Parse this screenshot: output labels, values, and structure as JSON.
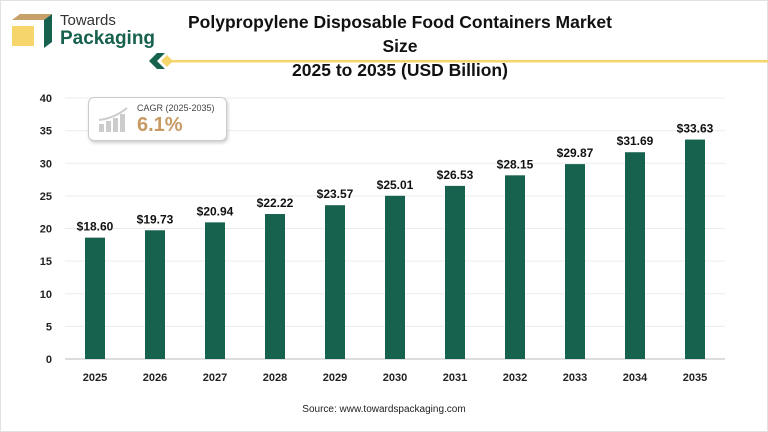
{
  "brand": {
    "line1": "Towards",
    "line2": "Packaging"
  },
  "colors": {
    "bar": "#17614f",
    "accent": "#f6d56a",
    "cagr": "#c89a64"
  },
  "cagr": {
    "label": "CAGR (2025-2035)",
    "value": "6.1%"
  },
  "source": "Source: www.towardspackaging.com",
  "chart_data": {
    "type": "bar",
    "title": "Polypropylene Disposable Food Containers Market Size 2025 to 2035 (USD Billion)",
    "title_lines": [
      "Polypropylene Disposable Food Containers Market Size",
      "2025 to 2035 (USD Billion)"
    ],
    "categories": [
      "2025",
      "2026",
      "2027",
      "2028",
      "2029",
      "2030",
      "2031",
      "2032",
      "2033",
      "2034",
      "2035"
    ],
    "values": [
      18.6,
      19.73,
      20.94,
      22.22,
      23.57,
      25.01,
      26.53,
      28.15,
      29.87,
      31.69,
      33.63
    ],
    "data_labels": [
      "$18.60",
      "$19.73",
      "$20.94",
      "$22.22",
      "$23.57",
      "$25.01",
      "$26.53",
      "$28.15",
      "$29.87",
      "$31.69",
      "$33.63"
    ],
    "ylim": [
      0,
      40
    ],
    "yticks": [
      "0",
      "5",
      "10",
      "15",
      "20",
      "25",
      "30",
      "35",
      "40"
    ],
    "grid": true,
    "xlabel": "",
    "ylabel": ""
  }
}
